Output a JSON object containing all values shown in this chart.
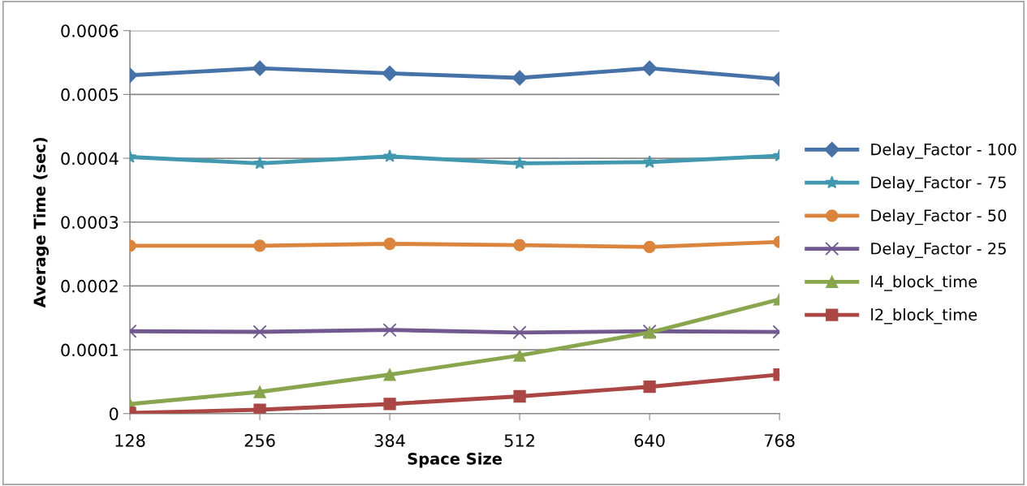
{
  "chart_data": {
    "type": "line",
    "xlabel": "Space Size",
    "ylabel": "Average Time (sec)",
    "categories": [
      "128",
      "256",
      "384",
      "512",
      "640",
      "768"
    ],
    "series": [
      {
        "name": "Delay_Factor - 100",
        "color": "#4672a8",
        "marker": "diamond",
        "values": [
          0.00053,
          0.000541,
          0.000533,
          0.000526,
          0.000541,
          0.000524
        ]
      },
      {
        "name": "Delay_Factor - 75",
        "color": "#4198af",
        "marker": "star",
        "values": [
          0.000402,
          0.000392,
          0.000403,
          0.000392,
          0.000394,
          0.000404
        ]
      },
      {
        "name": "Delay_Factor - 50",
        "color": "#db843d",
        "marker": "circle",
        "values": [
          0.000263,
          0.000263,
          0.000266,
          0.000264,
          0.000261,
          0.000269
        ]
      },
      {
        "name": "Delay_Factor - 25",
        "color": "#71588f",
        "marker": "cross",
        "values": [
          0.000129,
          0.000128,
          0.000131,
          0.000127,
          0.000129,
          0.000128
        ]
      },
      {
        "name": "l4_block_time",
        "color": "#89a54e",
        "marker": "triangle",
        "values": [
          1.5e-05,
          3.4e-05,
          6.1e-05,
          9.1e-05,
          0.000127,
          0.000179
        ]
      },
      {
        "name": "l2_block_time",
        "color": "#aa4643",
        "marker": "square",
        "values": [
          1e-06,
          6e-06,
          1.5e-05,
          2.7e-05,
          4.2e-05,
          6.1e-05
        ]
      }
    ],
    "ylim": [
      0,
      0.0006
    ],
    "yticks": [
      0,
      0.0001,
      0.0002,
      0.0003,
      0.0004,
      0.0005,
      0.0006
    ],
    "grid": "y",
    "legend": "right"
  }
}
